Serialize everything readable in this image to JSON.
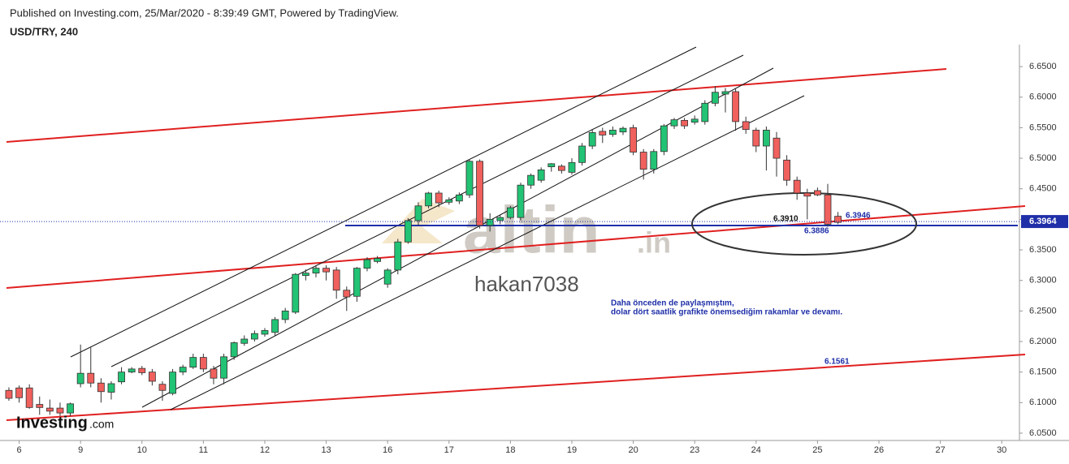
{
  "header": {
    "published": "Published on Investing.com, 25/Mar/2020 - 8:39:49 GMT, Powered by TradingView.",
    "symbol": "USD/TRY, 240"
  },
  "watermark": {
    "brand": "altin",
    "brand_suffix": ".in",
    "author": "hakan7038",
    "logo": "Investing",
    "logo_suffix": ".com"
  },
  "chart_data": {
    "type": "candlestick",
    "x": [
      0,
      1,
      2,
      3,
      4,
      5,
      6,
      7,
      8,
      9,
      10,
      11,
      12,
      13,
      14,
      15,
      16,
      17,
      18,
      19,
      20,
      21,
      22,
      23,
      24,
      25,
      26,
      27,
      28,
      29,
      30,
      31,
      32,
      33,
      34,
      35,
      36,
      37,
      38,
      39,
      40,
      41,
      42,
      43,
      44,
      45,
      46,
      47,
      48,
      49,
      50,
      51,
      52,
      53,
      54,
      55,
      56,
      57,
      58,
      59,
      60,
      61,
      62,
      63,
      64,
      65,
      66,
      67,
      68,
      69,
      70,
      71,
      72,
      73,
      74,
      75,
      76,
      77,
      78,
      79,
      80,
      81
    ],
    "open": [
      6.12,
      6.124,
      6.124,
      6.097,
      6.091,
      6.091,
      6.083,
      6.131,
      6.148,
      6.132,
      6.117,
      6.134,
      6.15,
      6.156,
      6.15,
      6.13,
      6.115,
      6.15,
      6.158,
      6.174,
      6.155,
      6.14,
      6.175,
      6.197,
      6.204,
      6.212,
      6.215,
      6.236,
      6.248,
      6.308,
      6.312,
      6.32,
      6.317,
      6.284,
      6.274,
      6.32,
      6.331,
      6.294,
      6.317,
      6.363,
      6.398,
      6.422,
      6.443,
      6.428,
      6.43,
      6.44,
      6.495,
      6.39,
      6.398,
      6.403,
      6.403,
      6.456,
      6.464,
      6.486,
      6.487,
      6.477,
      6.493,
      6.52,
      6.544,
      6.539,
      6.543,
      6.55,
      6.51,
      6.482,
      6.511,
      6.553,
      6.562,
      6.559,
      6.56,
      6.59,
      6.605,
      6.609,
      6.56,
      6.546,
      6.52,
      6.533,
      6.497,
      6.464,
      6.443,
      6.447,
      6.44,
      6.405
    ],
    "high": [
      6.125,
      6.128,
      6.13,
      6.11,
      6.105,
      6.1,
      6.1,
      6.195,
      6.19,
      6.14,
      6.135,
      6.158,
      6.158,
      6.16,
      6.155,
      6.135,
      6.155,
      6.162,
      6.18,
      6.18,
      6.16,
      6.18,
      6.2,
      6.21,
      6.218,
      6.222,
      6.24,
      6.255,
      6.312,
      6.318,
      6.325,
      6.325,
      6.322,
      6.29,
      6.322,
      6.338,
      6.34,
      6.32,
      6.368,
      6.402,
      6.428,
      6.445,
      6.447,
      6.436,
      6.444,
      6.498,
      6.498,
      6.41,
      6.408,
      6.422,
      6.46,
      6.475,
      6.485,
      6.492,
      6.49,
      6.5,
      6.525,
      6.548,
      6.55,
      6.552,
      6.552,
      6.555,
      6.515,
      6.515,
      6.556,
      6.566,
      6.566,
      6.57,
      6.595,
      6.618,
      6.615,
      6.615,
      6.568,
      6.55,
      6.552,
      6.543,
      6.505,
      6.47,
      6.45,
      6.452,
      6.458,
      6.412
    ],
    "low": [
      6.103,
      6.1,
      6.09,
      6.08,
      6.08,
      6.078,
      6.078,
      6.125,
      6.125,
      6.1,
      6.105,
      6.13,
      6.148,
      6.145,
      6.128,
      6.103,
      6.112,
      6.145,
      6.155,
      6.15,
      6.13,
      6.13,
      6.17,
      6.193,
      6.2,
      6.208,
      6.21,
      6.23,
      6.245,
      6.3,
      6.305,
      6.3,
      6.27,
      6.25,
      6.265,
      6.315,
      6.328,
      6.288,
      6.31,
      6.36,
      6.39,
      6.418,
      6.42,
      6.424,
      6.425,
      6.435,
      6.385,
      6.38,
      6.392,
      6.4,
      6.398,
      6.45,
      6.46,
      6.478,
      6.475,
      6.473,
      6.488,
      6.515,
      6.525,
      6.535,
      6.538,
      6.505,
      6.465,
      6.475,
      6.505,
      6.548,
      6.548,
      6.555,
      6.555,
      6.585,
      6.575,
      6.545,
      6.54,
      6.51,
      6.48,
      6.47,
      6.455,
      6.432,
      6.4,
      6.438,
      6.388,
      6.392
    ],
    "close": [
      6.107,
      6.108,
      6.092,
      6.092,
      6.086,
      6.083,
      6.098,
      6.148,
      6.132,
      6.118,
      6.131,
      6.15,
      6.155,
      6.149,
      6.135,
      6.12,
      6.15,
      6.158,
      6.174,
      6.155,
      6.14,
      6.175,
      6.198,
      6.204,
      6.213,
      6.218,
      6.236,
      6.25,
      6.31,
      6.312,
      6.32,
      6.314,
      6.284,
      6.273,
      6.32,
      6.334,
      6.336,
      6.317,
      6.363,
      6.398,
      6.422,
      6.443,
      6.427,
      6.432,
      6.44,
      6.495,
      6.39,
      6.4,
      6.403,
      6.419,
      6.456,
      6.472,
      6.481,
      6.491,
      6.48,
      6.493,
      6.52,
      6.542,
      6.538,
      6.546,
      6.549,
      6.51,
      6.482,
      6.511,
      6.553,
      6.563,
      6.553,
      6.564,
      6.59,
      6.608,
      6.609,
      6.56,
      6.547,
      6.52,
      6.546,
      6.5,
      6.464,
      6.443,
      6.438,
      6.44,
      6.392,
      6.395
    ],
    "colors": {
      "up": "#22c374",
      "down": "#f0605d"
    },
    "xlim": [
      -0.87,
      98.73
    ],
    "xticks": [
      {
        "value": 1,
        "label": "6"
      },
      {
        "value": 7,
        "label": "9"
      },
      {
        "value": 13,
        "label": "10"
      },
      {
        "value": 19,
        "label": "11"
      },
      {
        "value": 25,
        "label": "12"
      },
      {
        "value": 31,
        "label": "13"
      },
      {
        "value": 37,
        "label": "16"
      },
      {
        "value": 43,
        "label": "17"
      },
      {
        "value": 49,
        "label": "18"
      },
      {
        "value": 55,
        "label": "19"
      },
      {
        "value": 61,
        "label": "20"
      },
      {
        "value": 67,
        "label": "23"
      },
      {
        "value": 73,
        "label": "24"
      },
      {
        "value": 79,
        "label": "25"
      },
      {
        "value": 85,
        "label": "26"
      },
      {
        "value": 91,
        "label": "27"
      },
      {
        "value": 97,
        "label": "30"
      }
    ],
    "ylim": [
      6.038,
      6.686
    ],
    "yticks": [
      {
        "value": 6.05,
        "label": "6.0500"
      },
      {
        "value": 6.1,
        "label": "6.1000"
      },
      {
        "value": 6.15,
        "label": "6.1500"
      },
      {
        "value": 6.2,
        "label": "6.2000"
      },
      {
        "value": 6.25,
        "label": "6.2500"
      },
      {
        "value": 6.3,
        "label": "6.3000"
      },
      {
        "value": 6.35,
        "label": "6.3500"
      },
      {
        "value": 6.4,
        "label": "6.4000"
      },
      {
        "value": 6.45,
        "label": "6.4500"
      },
      {
        "value": 6.5,
        "label": "6.5000"
      },
      {
        "value": 6.55,
        "label": "6.5500"
      },
      {
        "value": 6.6,
        "label": "6.6000"
      },
      {
        "value": 6.65,
        "label": "6.6500"
      }
    ],
    "last_price": {
      "value": 6.3964,
      "label": "6.3964"
    },
    "annotations": [
      "6.3910",
      "6.3946",
      "6.3886",
      "6.1561",
      "Daha önceden de paylaşmıştım,",
      "dolar dört saatlik grafikte önemsediğim rakamlar ve devamı."
    ]
  }
}
